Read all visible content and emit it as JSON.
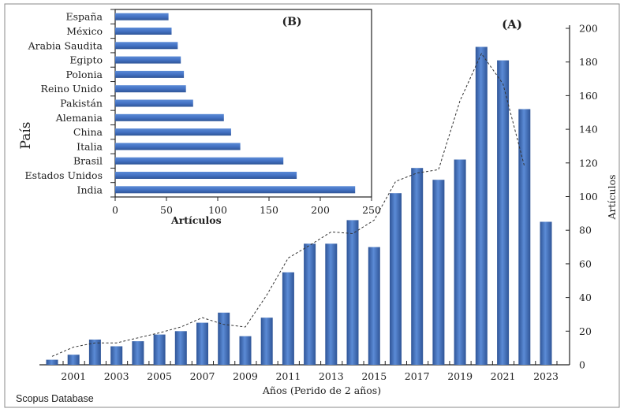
{
  "chart_data": [
    {
      "type": "bar",
      "panel_label": "(A)",
      "title": "",
      "xlabel": "Años (Perido de 2 años)",
      "ylabel": "Artículos",
      "ylim": [
        0,
        200
      ],
      "yticks": [
        0,
        20,
        40,
        60,
        80,
        100,
        120,
        140,
        160,
        180,
        200
      ],
      "y_axis_side": "right",
      "x": [
        2000,
        2001,
        2002,
        2003,
        2004,
        2005,
        2006,
        2007,
        2008,
        2009,
        2010,
        2011,
        2012,
        2013,
        2014,
        2015,
        2016,
        2017,
        2018,
        2019,
        2020,
        2021,
        2022,
        2023
      ],
      "xtick_labels": [
        "2001",
        "2003",
        "2005",
        "2007",
        "2009",
        "2011",
        "2013",
        "2015",
        "2017",
        "2019",
        "2021",
        "2023"
      ],
      "values": [
        3,
        6,
        15,
        11,
        14,
        18,
        20,
        25,
        31,
        17,
        28,
        55,
        72,
        72,
        86,
        70,
        102,
        117,
        110,
        122,
        189,
        181,
        152,
        85
      ],
      "trendline": {
        "style": "dashed",
        "x": [
          2000,
          2001,
          2002,
          2003,
          2004,
          2005,
          2006,
          2007,
          2008,
          2009,
          2010,
          2011,
          2012,
          2013,
          2014,
          2015,
          2016,
          2017,
          2018,
          2019,
          2020,
          2021,
          2022
        ],
        "values": [
          5,
          10.5,
          13,
          13,
          16,
          19,
          22.5,
          28,
          24,
          22.5,
          41.5,
          63.5,
          71,
          79,
          78,
          86,
          109,
          114,
          116,
          157,
          185,
          167,
          118
        ]
      },
      "grid": false,
      "bar_color": "#4472c4"
    },
    {
      "type": "bar",
      "orientation": "horizontal",
      "panel_label": "(B)",
      "title": "",
      "xlabel": "Artículos",
      "ylabel": "País",
      "xlim": [
        0,
        250
      ],
      "xticks": [
        0,
        50,
        100,
        150,
        200,
        250
      ],
      "categories": [
        "España",
        "México",
        "Arabia Saudita",
        "Egipto",
        "Polonia",
        "Reino Unido",
        "Pakistán",
        "Alemania",
        "China",
        "Italia",
        "Brasil",
        "Estados Unidos",
        "India"
      ],
      "values": [
        52,
        55,
        61,
        64,
        67,
        69,
        76,
        106,
        113,
        122,
        164,
        177,
        234
      ],
      "grid": false,
      "bar_color": "#4472c4"
    }
  ],
  "footer": {
    "source": "Scopus Database"
  }
}
